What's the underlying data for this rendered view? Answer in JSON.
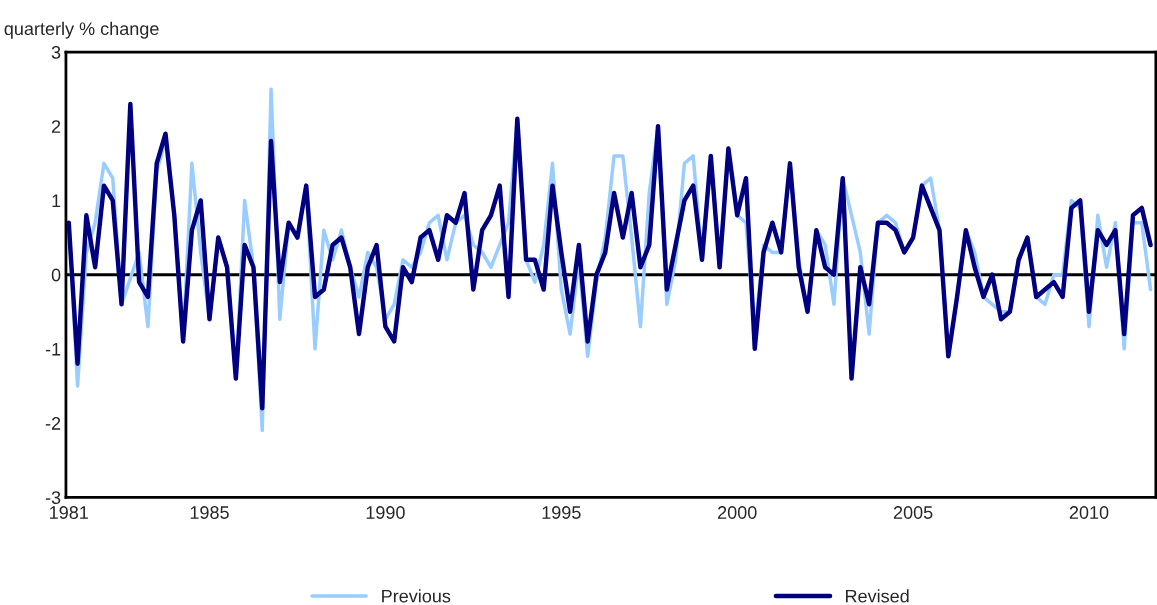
{
  "chart_data": {
    "type": "line",
    "ylabel": "quarterly % change",
    "x": [
      1981.0,
      1981.25,
      1981.5,
      1981.75,
      1982.0,
      1982.25,
      1982.5,
      1982.75,
      1983.0,
      1983.25,
      1983.5,
      1983.75,
      1984.0,
      1984.25,
      1984.5,
      1984.75,
      1985.0,
      1985.25,
      1985.5,
      1985.75,
      1986.0,
      1986.25,
      1986.5,
      1986.75,
      1987.0,
      1987.25,
      1987.5,
      1987.75,
      1988.0,
      1988.25,
      1988.5,
      1988.75,
      1989.0,
      1989.25,
      1989.5,
      1989.75,
      1990.0,
      1990.25,
      1990.5,
      1990.75,
      1991.0,
      1991.25,
      1991.5,
      1991.75,
      1992.0,
      1992.25,
      1992.5,
      1992.75,
      1993.0,
      1993.25,
      1993.5,
      1993.75,
      1994.0,
      1994.25,
      1994.5,
      1994.75,
      1995.0,
      1995.25,
      1995.5,
      1995.75,
      1996.0,
      1996.25,
      1996.5,
      1996.75,
      1997.0,
      1997.25,
      1997.5,
      1997.75,
      1998.0,
      1998.25,
      1998.5,
      1998.75,
      1999.0,
      1999.25,
      1999.5,
      1999.75,
      2000.0,
      2000.25,
      2000.5,
      2000.75,
      2001.0,
      2001.25,
      2001.5,
      2001.75,
      2002.0,
      2002.25,
      2002.5,
      2002.75,
      2003.0,
      2003.25,
      2003.5,
      2003.75,
      2004.0,
      2004.25,
      2004.5,
      2004.75,
      2005.0,
      2005.25,
      2005.5,
      2005.75,
      2006.0,
      2006.25,
      2006.5,
      2006.75,
      2007.0,
      2007.25,
      2007.5,
      2007.75,
      2008.0,
      2008.25,
      2008.5,
      2008.75,
      2009.0,
      2009.25,
      2009.5,
      2009.75,
      2010.0,
      2010.25,
      2010.5,
      2010.75,
      2011.0,
      2011.25,
      2011.5,
      2011.75
    ],
    "series": [
      {
        "name": "Previous",
        "color": "#99ccff",
        "values": [
          0.7,
          -1.5,
          0.3,
          0.7,
          1.5,
          1.3,
          -0.4,
          null,
          0.3,
          -0.7,
          1.4,
          1.8,
          0.8,
          -0.9,
          1.5,
          0.3,
          -0.6,
          0.5,
          0.1,
          -1.4,
          1.0,
          0.1,
          -2.1,
          2.5,
          -0.6,
          0.7,
          0.5,
          1.2,
          -1.0,
          0.6,
          0.2,
          0.6,
          0.1,
          -0.3,
          0.3,
          0.1,
          -0.6,
          -0.4,
          0.2,
          0.1,
          0.3,
          0.7,
          0.8,
          0.2,
          0.7,
          0.8,
          0.4,
          0.3,
          0.1,
          0.4,
          0.7,
          2.1,
          0.2,
          -0.1,
          0.4,
          1.5,
          -0.2,
          -0.8,
          0.2,
          -1.1,
          -0.1,
          0.5,
          1.6,
          1.6,
          0.5,
          -0.7,
          1.1,
          2.0,
          -0.4,
          0.2,
          1.5,
          1.6,
          0.2,
          1.6,
          0.1,
          1.7,
          0.8,
          0.7,
          -0.8,
          0.4,
          0.3,
          0.3,
          1.5,
          0.2,
          -0.5,
          0.6,
          0.4,
          -0.4,
          1.3,
          null,
          0.3,
          -0.8,
          0.7,
          0.8,
          0.7,
          0.3,
          0.5,
          1.2,
          1.3,
          0.6,
          -1.1,
          -0.3,
          0.6,
          0.3,
          -0.3,
          -0.4,
          -0.5,
          -0.5,
          0.2,
          0.5,
          -0.3,
          -0.4,
          0.0,
          0.0,
          1.0,
          0.9,
          -0.7,
          0.8,
          0.1,
          0.7,
          -1.0,
          0.7,
          0.7,
          -0.2
        ]
      },
      {
        "name": "Revised",
        "color": "#000080",
        "values": [
          0.7,
          -1.2,
          0.8,
          0.1,
          1.2,
          1.0,
          -0.4,
          2.3,
          -0.1,
          -0.3,
          1.5,
          1.9,
          0.8,
          -0.9,
          0.6,
          1.0,
          -0.6,
          0.5,
          0.1,
          -1.4,
          0.4,
          0.1,
          -1.8,
          1.8,
          -0.1,
          0.7,
          0.5,
          1.2,
          -0.3,
          -0.2,
          0.4,
          0.5,
          0.1,
          -0.8,
          0.1,
          0.4,
          -0.7,
          -0.9,
          0.1,
          -0.1,
          0.5,
          0.6,
          0.2,
          0.8,
          0.7,
          1.1,
          -0.2,
          0.6,
          0.8,
          1.2,
          -0.3,
          2.1,
          0.2,
          0.2,
          -0.2,
          1.2,
          0.3,
          -0.5,
          0.4,
          -0.9,
          0.0,
          0.3,
          1.1,
          0.5,
          1.1,
          0.1,
          0.4,
          2.0,
          -0.2,
          0.4,
          1.0,
          1.2,
          0.2,
          1.6,
          0.1,
          1.7,
          0.8,
          1.3,
          -1.0,
          0.3,
          0.7,
          0.3,
          1.5,
          0.1,
          -0.5,
          0.6,
          0.1,
          0.0,
          1.3,
          -1.4,
          0.1,
          -0.4,
          0.7,
          0.7,
          0.6,
          0.3,
          0.5,
          1.2,
          0.9,
          0.6,
          -1.1,
          -0.3,
          0.6,
          0.1,
          -0.3,
          0.0,
          -0.6,
          -0.5,
          0.2,
          0.5,
          -0.3,
          -0.2,
          -0.1,
          -0.3,
          0.9,
          1.0,
          -0.5,
          0.6,
          0.4,
          0.6,
          -0.8,
          0.8,
          0.9,
          0.4
        ]
      }
    ],
    "xlim": [
      1980.92,
      2011.9
    ],
    "xticks": [
      1981,
      1985,
      1990,
      1995,
      2000,
      2005,
      2010
    ],
    "ylim": [
      -3,
      3
    ],
    "yticks": [
      -3,
      -2,
      -1,
      0,
      1,
      2,
      3
    ],
    "ref_lines": [
      {
        "axis": "y",
        "value": 0,
        "color": "#000000"
      }
    ],
    "legend": "bottom",
    "line_style": "solid",
    "marker": "none"
  }
}
